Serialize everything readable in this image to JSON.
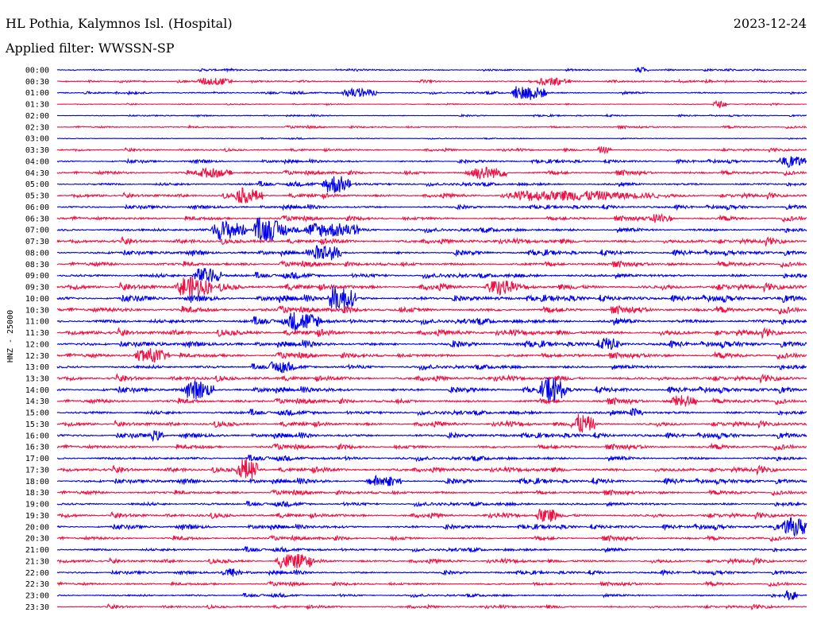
{
  "header": {
    "station": "HL Pothia, Kalymnos Isl. (Hospital)",
    "date": "2023-12-24",
    "filter": "Applied filter: WWSSN-SP"
  },
  "chart_data": {
    "type": "line",
    "title": "HL Pothia, Kalymnos Isl. (Hospital)",
    "ylabel": "HNZ - 25000",
    "xlabel": "",
    "tick_labels": [
      "00:00",
      "00:30",
      "01:00",
      "01:30",
      "02:00",
      "02:30",
      "03:00",
      "03:30",
      "04:00",
      "04:30",
      "05:00",
      "05:30",
      "06:00",
      "06:30",
      "07:00",
      "07:30",
      "08:00",
      "08:30",
      "09:00",
      "09:30",
      "10:00",
      "10:30",
      "11:00",
      "11:30",
      "12:00",
      "12:30",
      "13:00",
      "13:30",
      "14:00",
      "14:30",
      "15:00",
      "15:30",
      "16:00",
      "16:30",
      "17:00",
      "17:30",
      "18:00",
      "18:30",
      "19:00",
      "19:30",
      "20:00",
      "20:30",
      "21:00",
      "21:30",
      "22:00",
      "22:30",
      "23:00",
      "23:30"
    ],
    "trace_minutes": 30,
    "series_colors": [
      "#0000ee",
      "#ee1144"
    ],
    "noise_level": [
      0.6,
      0.7,
      0.8,
      0.4,
      0.5,
      0.7,
      0.4,
      0.8,
      1.0,
      1.3,
      1.3,
      1.3,
      1.2,
      1.4,
      1.5,
      1.6,
      1.5,
      1.6,
      1.7,
      1.9,
      1.9,
      2.0,
      2.0,
      1.9,
      1.8,
      1.7,
      1.6,
      1.6,
      1.7,
      1.6,
      1.6,
      1.5,
      1.5,
      1.5,
      1.5,
      1.6,
      1.5,
      1.4,
      1.4,
      1.4,
      1.4,
      1.3,
      1.3,
      1.3,
      1.1,
      1.1,
      1.0,
      1.0
    ],
    "events": [
      {
        "trace": 0,
        "minute": 23.2,
        "amplitude": 3,
        "duration_min": 0.4
      },
      {
        "trace": 1,
        "minute": 5.8,
        "amplitude": 4,
        "duration_min": 1.0
      },
      {
        "trace": 1,
        "minute": 19.4,
        "amplitude": 4,
        "duration_min": 1.0
      },
      {
        "trace": 2,
        "minute": 11.6,
        "amplitude": 5,
        "duration_min": 1.0
      },
      {
        "trace": 2,
        "minute": 18.4,
        "amplitude": 9,
        "duration_min": 1.0
      },
      {
        "trace": 3,
        "minute": 26.3,
        "amplitude": 4,
        "duration_min": 0.4
      },
      {
        "trace": 7,
        "minute": 21.7,
        "amplitude": 4,
        "duration_min": 0.4
      },
      {
        "trace": 8,
        "minute": 29.0,
        "amplitude": 5,
        "duration_min": 0.8
      },
      {
        "trace": 9,
        "minute": 5.8,
        "amplitude": 5,
        "duration_min": 1.0
      },
      {
        "trace": 9,
        "minute": 16.6,
        "amplitude": 7,
        "duration_min": 1.2
      },
      {
        "trace": 10,
        "minute": 10.8,
        "amplitude": 11,
        "duration_min": 0.8
      },
      {
        "trace": 11,
        "minute": 7.3,
        "amplitude": 8,
        "duration_min": 0.8
      },
      {
        "trace": 11,
        "minute": 18.9,
        "amplitude": 5,
        "duration_min": 4.3
      },
      {
        "trace": 13,
        "minute": 23.9,
        "amplitude": 5,
        "duration_min": 0.6
      },
      {
        "trace": 14,
        "minute": 6.4,
        "amplitude": 11,
        "duration_min": 1.0
      },
      {
        "trace": 14,
        "minute": 8.0,
        "amplitude": 12,
        "duration_min": 1.0
      },
      {
        "trace": 14,
        "minute": 10.2,
        "amplitude": 8,
        "duration_min": 1.6
      },
      {
        "trace": 16,
        "minute": 10.4,
        "amplitude": 9,
        "duration_min": 0.8
      },
      {
        "trace": 18,
        "minute": 5.6,
        "amplitude": 9,
        "duration_min": 0.8
      },
      {
        "trace": 19,
        "minute": 5.0,
        "amplitude": 12,
        "duration_min": 1.0
      },
      {
        "trace": 19,
        "minute": 17.3,
        "amplitude": 7,
        "duration_min": 0.8
      },
      {
        "trace": 20,
        "minute": 11.0,
        "amplitude": 14,
        "duration_min": 0.8
      },
      {
        "trace": 22,
        "minute": 9.4,
        "amplitude": 9,
        "duration_min": 1.0
      },
      {
        "trace": 24,
        "minute": 21.9,
        "amplitude": 5,
        "duration_min": 0.6
      },
      {
        "trace": 25,
        "minute": 3.3,
        "amplitude": 8,
        "duration_min": 1.0
      },
      {
        "trace": 26,
        "minute": 8.6,
        "amplitude": 5,
        "duration_min": 0.6
      },
      {
        "trace": 28,
        "minute": 5.3,
        "amplitude": 9,
        "duration_min": 0.8
      },
      {
        "trace": 28,
        "minute": 19.5,
        "amplitude": 14,
        "duration_min": 0.7
      },
      {
        "trace": 29,
        "minute": 24.7,
        "amplitude": 6,
        "duration_min": 0.8
      },
      {
        "trace": 30,
        "minute": 23.0,
        "amplitude": 5,
        "duration_min": 0.4
      },
      {
        "trace": 31,
        "minute": 20.7,
        "amplitude": 11,
        "duration_min": 0.7
      },
      {
        "trace": 32,
        "minute": 3.8,
        "amplitude": 5,
        "duration_min": 0.4
      },
      {
        "trace": 35,
        "minute": 7.3,
        "amplitude": 13,
        "duration_min": 0.6
      },
      {
        "trace": 36,
        "minute": 12.6,
        "amplitude": 6,
        "duration_min": 1.0
      },
      {
        "trace": 39,
        "minute": 19.3,
        "amplitude": 8,
        "duration_min": 0.6
      },
      {
        "trace": 40,
        "minute": 29.3,
        "amplitude": 10,
        "duration_min": 1.4
      },
      {
        "trace": 43,
        "minute": 9.0,
        "amplitude": 8,
        "duration_min": 1.0
      },
      {
        "trace": 44,
        "minute": 6.7,
        "amplitude": 5,
        "duration_min": 0.6
      },
      {
        "trace": 46,
        "minute": 29.2,
        "amplitude": 5,
        "duration_min": 0.4
      }
    ]
  }
}
